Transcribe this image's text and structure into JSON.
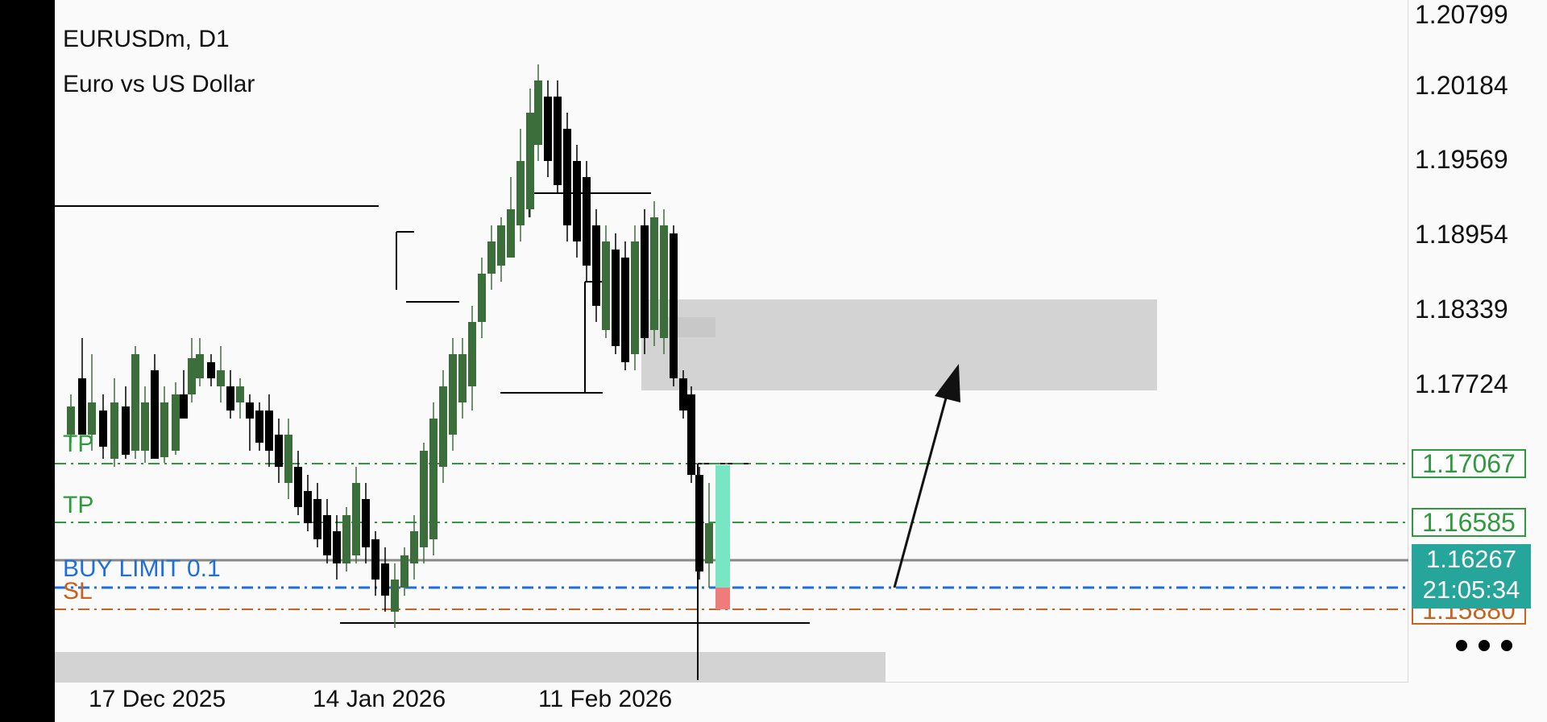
{
  "header": {
    "symbol_timeframe": "EURUSDm, D1",
    "description": "Euro vs US Dollar"
  },
  "price_axis": {
    "ticks": [
      "1.20799",
      "1.20184",
      "1.19569",
      "1.18954",
      "1.18339",
      "1.17724"
    ]
  },
  "levels": {
    "tp1": {
      "label": "TP",
      "price": "1.17067",
      "color": "#2e9a3e"
    },
    "tp2": {
      "label": "TP",
      "price": "1.16585",
      "color": "#2e9a3e"
    },
    "buy_limit": {
      "label": "BUY LIMIT 0.1",
      "color": "#1e6fd9"
    },
    "sl": {
      "label": "SL",
      "price": "1.15880",
      "color": "#c8621e"
    }
  },
  "current_price": {
    "price": "1.16267",
    "countdown": "21:05:34",
    "color": "#26a69a"
  },
  "date_axis": {
    "labels": [
      "17 Dec 2025",
      "14 Jan 2026",
      "11 Feb 2026"
    ]
  },
  "colors": {
    "bull": "#3c6e3c",
    "bear": "#000000",
    "zone": "#d3d3d3",
    "tp_fill": "#78e6c2",
    "sl_fill": "#ef7b7b"
  },
  "icons": {
    "more": "more-dots-icon",
    "arrow": "up-arrow-icon"
  }
}
